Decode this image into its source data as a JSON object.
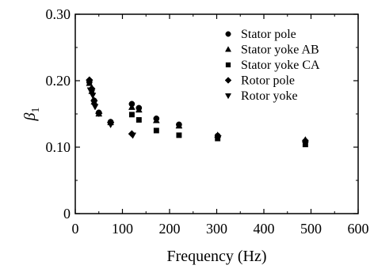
{
  "chart_data": {
    "type": "scatter",
    "title": "",
    "xlabel": "Frequency (Hz)",
    "ylabel": "β1",
    "ylabel_main": "β",
    "ylabel_sub": "1",
    "xlim": [
      0,
      600
    ],
    "ylim": [
      0,
      0.3
    ],
    "xticks": [
      0,
      100,
      200,
      300,
      400,
      500,
      600
    ],
    "xtick_labels": [
      "0",
      "100",
      "200",
      "300",
      "400",
      "500",
      "600"
    ],
    "yticks": [
      0,
      0.1,
      0.2,
      0.3
    ],
    "ytick_labels": [
      "0",
      "0.10",
      "0.20",
      "0.30"
    ],
    "grid": false,
    "legend_position": "top-right",
    "series": [
      {
        "name": "Stator pole",
        "marker": "circle",
        "x": [
          30,
          35,
          40,
          50,
          75,
          120,
          135,
          172,
          220,
          302,
          488
        ],
        "y": [
          0.198,
          0.186,
          0.17,
          0.152,
          0.138,
          0.165,
          0.159,
          0.143,
          0.134,
          0.117,
          0.109
        ]
      },
      {
        "name": "Stator yoke AB",
        "marker": "triangle-up",
        "x": [
          30,
          35,
          40,
          50,
          75,
          120,
          135,
          172,
          220,
          302,
          488
        ],
        "y": [
          0.196,
          0.184,
          0.168,
          0.15,
          0.137,
          0.16,
          0.156,
          0.14,
          0.132,
          0.118,
          0.111
        ]
      },
      {
        "name": "Stator yoke CA",
        "marker": "square",
        "x": [
          120,
          135,
          172,
          220,
          302,
          488
        ],
        "y": [
          0.149,
          0.141,
          0.125,
          0.118,
          0.113,
          0.104
        ]
      },
      {
        "name": "Rotor pole",
        "marker": "diamond",
        "x": [
          30,
          35,
          40,
          50,
          75,
          120
        ],
        "y": [
          0.201,
          0.188,
          0.17,
          0.151,
          0.137,
          0.12
        ]
      },
      {
        "name": "Rotor yoke",
        "marker": "triangle-down",
        "x": [
          32,
          37,
          42,
          75,
          122,
          303,
          488
        ],
        "y": [
          0.186,
          0.178,
          0.161,
          0.134,
          0.118,
          0.114,
          0.107
        ]
      }
    ]
  }
}
